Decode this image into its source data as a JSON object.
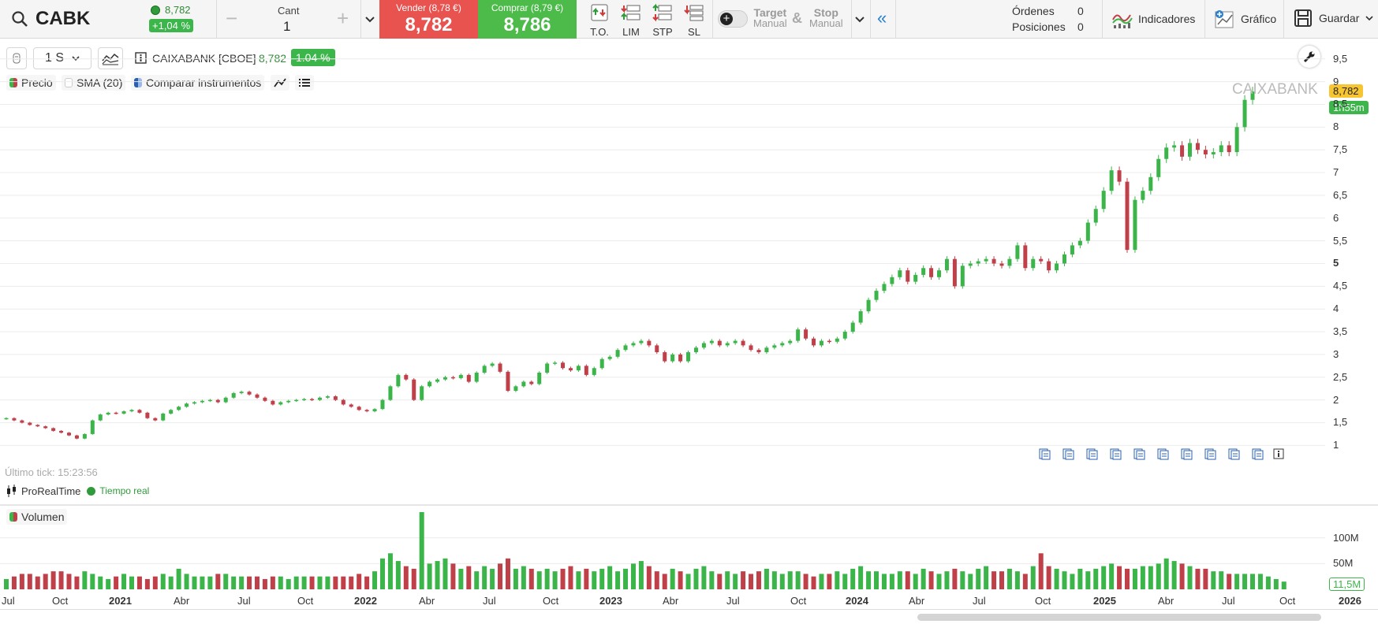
{
  "header": {
    "symbol": "CABK",
    "last_price": "8,782",
    "change_pct": "+1,04 %",
    "qty_label": "Cant",
    "qty_value": "1",
    "qty_minus": "−",
    "qty_plus": "+",
    "sell_label": "Vender (8,78 €)",
    "sell_price": "8,782",
    "buy_label": "Comprar (8,79 €)",
    "buy_price": "8,786",
    "order_types": [
      "T.O.",
      "LIM",
      "STP",
      "SL"
    ],
    "target_label": "Target",
    "target_sub": "Manual",
    "amp": "&",
    "stop_label": "Stop",
    "stop_sub": "Manual",
    "collapse": "«",
    "orders_label": "Órdenes",
    "orders_count": "0",
    "positions_label": "Posiciones",
    "positions_count": "0",
    "indicators_label": "Indicadores",
    "chart_label": "Gráfico",
    "save_label": "Guardar"
  },
  "toolbar": {
    "timeframe": "1 S",
    "instrument": "CAIXABANK [CBOE]",
    "price": "8,782",
    "pct": "1.04 %",
    "legend": [
      "Precio",
      "SMA (20)",
      "Comparar instrumentos"
    ],
    "watermark": "CAIXABANK",
    "price_tag": "8,782",
    "time_tag": "1h55m",
    "last_tick": "Último tick: 15:23:56",
    "provider": "ProRealTime",
    "realtime": "Tiempo real"
  },
  "volume": {
    "label": "Volumen",
    "tag": "11,5M"
  },
  "colors": {
    "up": "#3bb54a",
    "down": "#c0404a",
    "sell": "#e8524f",
    "buy": "#4cbb4a",
    "accent": "#2a7fd0"
  },
  "chart_data": {
    "type": "candlestick",
    "y_ticks": [
      "9,5",
      "9",
      "8,5",
      "8",
      "7,5",
      "7",
      "6,5",
      "6",
      "5,5",
      "5",
      "4,5",
      "4",
      "3,5",
      "3",
      "2,5",
      "2",
      "1,5",
      "1"
    ],
    "ylim": [
      0.85,
      9.6
    ],
    "x_ticks": [
      "Jul",
      "Oct",
      "2021",
      "Abr",
      "Jul",
      "Oct",
      "2022",
      "Abr",
      "Jul",
      "Oct",
      "2023",
      "Abr",
      "Jul",
      "Oct",
      "2024",
      "Abr",
      "Jul",
      "Oct",
      "2025",
      "Abr",
      "Jul",
      "Oct",
      "2026"
    ],
    "volume_ticks": [
      "100M",
      "50M"
    ],
    "closes": [
      1.6,
      1.55,
      1.5,
      1.45,
      1.42,
      1.38,
      1.32,
      1.28,
      1.22,
      1.15,
      1.25,
      1.55,
      1.68,
      1.72,
      1.7,
      1.75,
      1.78,
      1.72,
      1.6,
      1.55,
      1.7,
      1.78,
      1.85,
      1.92,
      1.95,
      1.98,
      2.0,
      1.95,
      2.05,
      2.15,
      2.18,
      2.12,
      2.05,
      1.98,
      1.9,
      1.95,
      1.98,
      2.0,
      2.02,
      2.0,
      2.05,
      2.08,
      2.0,
      1.9,
      1.85,
      1.78,
      1.75,
      1.8,
      2.0,
      2.3,
      2.55,
      2.45,
      2.0,
      2.3,
      2.4,
      2.45,
      2.5,
      2.48,
      2.55,
      2.4,
      2.6,
      2.75,
      2.8,
      2.62,
      2.2,
      2.3,
      2.4,
      2.35,
      2.6,
      2.8,
      2.82,
      2.7,
      2.65,
      2.75,
      2.55,
      2.7,
      2.9,
      2.95,
      3.1,
      3.2,
      3.25,
      3.3,
      3.2,
      3.05,
      2.85,
      3.0,
      2.85,
      3.05,
      3.15,
      3.25,
      3.3,
      3.2,
      3.25,
      3.3,
      3.2,
      3.1,
      3.05,
      3.15,
      3.2,
      3.25,
      3.3,
      3.55,
      3.35,
      3.2,
      3.3,
      3.28,
      3.35,
      3.5,
      3.7,
      3.95,
      4.2,
      4.4,
      4.55,
      4.7,
      4.85,
      4.6,
      4.75,
      4.9,
      4.7,
      4.85,
      5.1,
      4.5,
      4.95,
      5.0,
      5.05,
      5.1,
      5.0,
      4.95,
      5.1,
      5.4,
      4.9,
      5.1,
      5.05,
      4.85,
      5.0,
      5.2,
      5.4,
      5.5,
      5.9,
      6.2,
      6.6,
      7.05,
      6.8,
      5.3,
      6.4,
      6.6,
      6.9,
      7.3,
      7.55,
      7.6,
      7.35,
      7.65,
      7.5,
      7.4,
      7.45,
      7.6,
      7.45,
      8.0,
      8.6,
      8.782
    ],
    "volume_levels": [
      4,
      5,
      6,
      6,
      5,
      6,
      7,
      7,
      6,
      5,
      7,
      6,
      5,
      4,
      5,
      6,
      5,
      5,
      4,
      5,
      6,
      5,
      8,
      6,
      5,
      5,
      5,
      6,
      6,
      5,
      5,
      5,
      5,
      4,
      5,
      5,
      4,
      5,
      5,
      5,
      5,
      5,
      5,
      5,
      5,
      6,
      5,
      7,
      12,
      14,
      11,
      9,
      8,
      30,
      10,
      11,
      12,
      10,
      8,
      9,
      7,
      9,
      8,
      10,
      12,
      8,
      9,
      8,
      7,
      8,
      7,
      8,
      9,
      7,
      8,
      7,
      8,
      9,
      7,
      8,
      10,
      11,
      9,
      7,
      6,
      8,
      7,
      6,
      8,
      9,
      7,
      6,
      7,
      6,
      7,
      6,
      7,
      8,
      7,
      6,
      7,
      7,
      6,
      5,
      6,
      6,
      7,
      6,
      8,
      9,
      7,
      7,
      6,
      6,
      7,
      7,
      6,
      8,
      7,
      6,
      7,
      8,
      7,
      6,
      8,
      9,
      7,
      7,
      8,
      7,
      6,
      9,
      14,
      9,
      8,
      7,
      6,
      8,
      7,
      8,
      9,
      10,
      9,
      8,
      8,
      9,
      9,
      10,
      12,
      11,
      10,
      9,
      8,
      8,
      7,
      7,
      6,
      6,
      6,
      6,
      6,
      5,
      4,
      3
    ],
    "volume_scale_m": 5
  }
}
